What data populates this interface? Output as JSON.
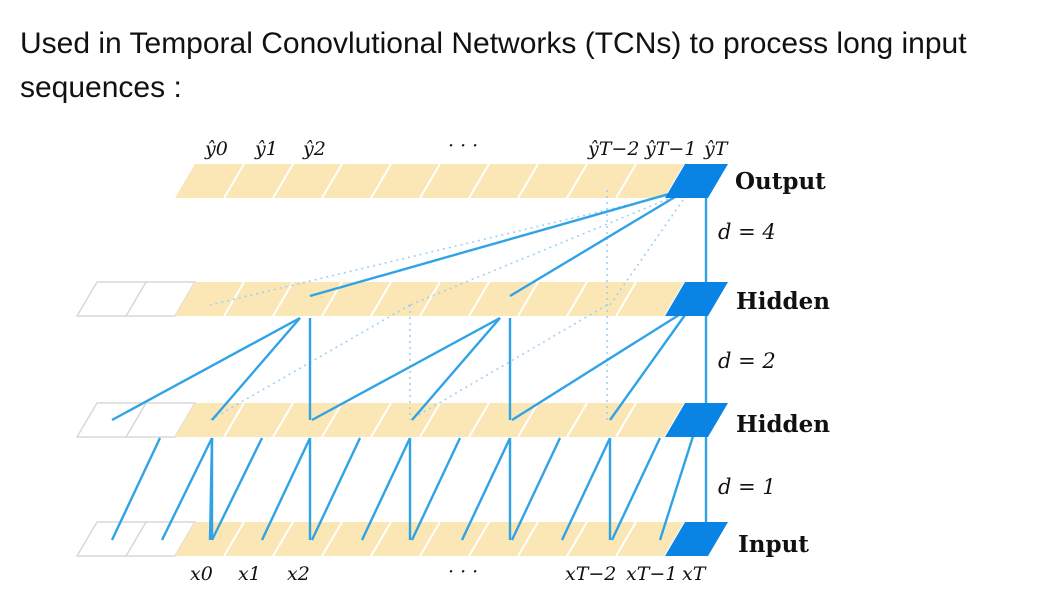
{
  "caption": "Used in Temporal Conovlutional Networks (TCNs) to process long input sequences :",
  "layers": [
    {
      "label": "Output",
      "padding_cells": 0
    },
    {
      "label": "Hidden",
      "padding_cells": 2
    },
    {
      "label": "Hidden",
      "padding_cells": 2
    },
    {
      "label": "Input",
      "padding_cells": 2
    }
  ],
  "dilations": [
    "d = 4",
    "d = 2",
    "d = 1"
  ],
  "output_labels": {
    "y0": "ŷ0",
    "y1": "ŷ1",
    "y2": "ŷ2",
    "dots": "· · ·",
    "yT2": "ŷT−2",
    "yT1": "ŷT−1",
    "yT": "ŷT"
  },
  "input_labels": {
    "x0": "x0",
    "x1": "x1",
    "x2": "x2",
    "dots": "· · ·",
    "xT2": "xT−2",
    "xT1": "xT−1",
    "xT": "xT"
  },
  "colors": {
    "cell_fill": "#fbe6b5",
    "cell_stroke": "#ffffff",
    "pad_stroke": "#d8d8d8",
    "highlight": "#0a84e4",
    "connection": "#2fa3e6"
  }
}
